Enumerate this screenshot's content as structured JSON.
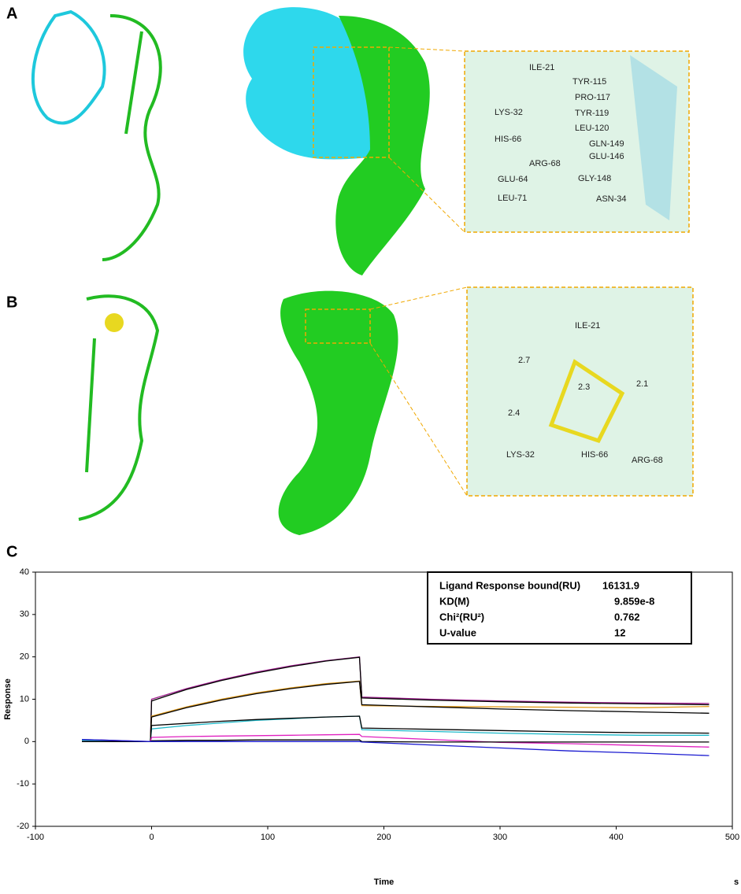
{
  "panels": {
    "a": {
      "label": "A",
      "residues": [
        "ILE-21",
        "TYR-115",
        "PRO-117",
        "TYR-119",
        "LYS-32",
        "LEU-120",
        "HIS-66",
        "GLN-149",
        "ARG-68",
        "GLU-146",
        "GLU-64",
        "GLY-148",
        "LEU-71",
        "ASN-34"
      ]
    },
    "b": {
      "label": "B",
      "residues": [
        "ILE-21",
        "2.7",
        "2.3",
        "2.1",
        "2.4",
        "LYS-32",
        "HIS-66",
        "ARG-68"
      ]
    },
    "c": {
      "label": "C"
    }
  },
  "chart_data": {
    "type": "line",
    "xlabel": "Time",
    "xunit": "s",
    "ylabel": "Response",
    "xlim": [
      -100,
      500
    ],
    "xticks": [
      -100,
      0,
      100,
      200,
      300,
      400,
      500
    ],
    "ylim": [
      -20,
      40
    ],
    "yticks": [
      -20,
      -10,
      0,
      10,
      20,
      30,
      40
    ],
    "table": [
      [
        "Ligand Response bound(RU)",
        "16131.9"
      ],
      [
        "KD(M)",
        "9.859e-8"
      ],
      [
        "Chi²(RU²)",
        "0.762"
      ],
      [
        "U-value",
        "12"
      ]
    ],
    "x": [
      -60,
      -1,
      0,
      30,
      60,
      90,
      120,
      150,
      179,
      181,
      240,
      300,
      360,
      420,
      480
    ],
    "series": [
      {
        "color": "#a0208f",
        "values": [
          0.5,
          0,
          10,
          12.5,
          14.6,
          16.4,
          17.9,
          19.1,
          20,
          10.5,
          10,
          9.6,
          9.3,
          9.1,
          9
        ]
      },
      {
        "color": "#000000",
        "values": [
          0,
          0,
          9.6,
          12.3,
          14.4,
          16.2,
          17.7,
          19,
          19.9,
          10.3,
          9.8,
          9.4,
          9.1,
          8.9,
          8.7
        ]
      },
      {
        "color": "#e09a1a",
        "values": [
          0,
          0,
          6,
          8.2,
          10,
          11.5,
          12.7,
          13.7,
          14.3,
          8.5,
          8.3,
          8.2,
          8.1,
          8,
          8.3
        ]
      },
      {
        "color": "#000000",
        "values": [
          0,
          0,
          5.8,
          8,
          9.8,
          11.3,
          12.5,
          13.5,
          14.2,
          8.7,
          8.2,
          7.7,
          7.3,
          7,
          6.7
        ]
      },
      {
        "color": "#1cb8c8",
        "values": [
          0.3,
          0,
          3,
          3.8,
          4.4,
          5,
          5.4,
          5.8,
          6,
          2.8,
          2.4,
          2,
          1.7,
          1.5,
          1.5
        ]
      },
      {
        "color": "#000000",
        "values": [
          0,
          0,
          3.8,
          4.3,
          4.8,
          5.2,
          5.5,
          5.8,
          6,
          3.2,
          2.9,
          2.6,
          2.3,
          2.1,
          2
        ]
      },
      {
        "color": "#e020c0",
        "values": [
          0,
          0,
          1,
          1.2,
          1.3,
          1.4,
          1.5,
          1.6,
          1.7,
          1.2,
          0.5,
          -0.2,
          -0.5,
          -0.9,
          -1.3
        ]
      },
      {
        "color": "#000000",
        "values": [
          0,
          0,
          0.2,
          0.3,
          0.3,
          0.4,
          0.4,
          0.4,
          0.4,
          0,
          -0.1,
          -0.1,
          -0.1,
          -0.1,
          -0.1
        ]
      },
      {
        "color": "#1a1ad0",
        "values": [
          0.5,
          0,
          0,
          0,
          0,
          0,
          0,
          0,
          0,
          -0.1,
          -0.8,
          -1.5,
          -2.2,
          -2.7,
          -3.3
        ]
      }
    ]
  }
}
